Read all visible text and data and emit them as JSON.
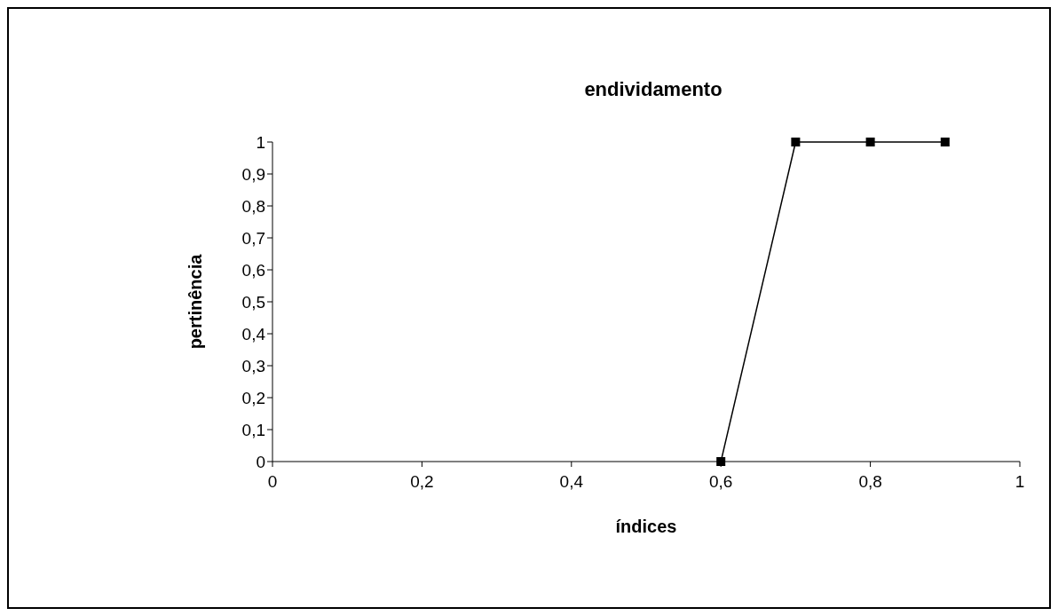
{
  "chart_data": {
    "type": "line",
    "title": "endividamento",
    "xlabel": "índices",
    "ylabel": "pertinência",
    "x": [
      0.6,
      0.7,
      0.8,
      0.9
    ],
    "series": [
      {
        "color": "#000000",
        "values": [
          0,
          1,
          1,
          1
        ]
      }
    ],
    "xlim": [
      0,
      1
    ],
    "xticks": [
      0,
      {
        "value": 0.2,
        "label": "0,2"
      },
      {
        "value": 0.4,
        "label": "0,4"
      },
      {
        "value": 0.6,
        "label": "0,6"
      },
      {
        "value": 0.8,
        "label": "0,8"
      },
      1
    ],
    "ylim": [
      0,
      1
    ],
    "yticks": [
      0,
      {
        "value": 0.1,
        "label": "0,1"
      },
      {
        "value": 0.2,
        "label": "0,2"
      },
      {
        "value": 0.3,
        "label": "0,3"
      },
      {
        "value": 0.4,
        "label": "0,4"
      },
      {
        "value": 0.5,
        "label": "0,5"
      },
      {
        "value": 0.6,
        "label": "0,6"
      },
      {
        "value": 0.7,
        "label": "0,7"
      },
      {
        "value": 0.8,
        "label": "0,8"
      },
      {
        "value": 0.9,
        "label": "0,9"
      },
      1
    ],
    "grid": false,
    "legend": false,
    "marker": "square",
    "line_style": "solid"
  }
}
